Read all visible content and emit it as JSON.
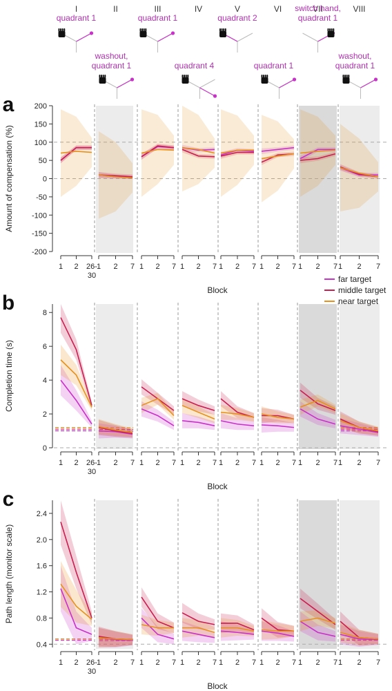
{
  "colors": {
    "far": "#c832c8",
    "middle": "#c81e50",
    "near": "#e6911e",
    "shade": "#e8e8e8",
    "refline": "#b0b0b0",
    "grey_dark": "#dadada",
    "grey_light": "#ececec"
  },
  "phases": [
    {
      "roman": "I",
      "label": "quadrant 1",
      "hand": "right",
      "quadrant": 1,
      "row": "top"
    },
    {
      "roman": "II",
      "label": "washout, quadrant 1",
      "hand": "right",
      "quadrant": 1,
      "row": "mid"
    },
    {
      "roman": "III",
      "label": "quadrant 1",
      "hand": "right",
      "quadrant": 1,
      "row": "top"
    },
    {
      "roman": "IV",
      "label": "quadrant 4",
      "hand": "right",
      "quadrant": 4,
      "row": "mid"
    },
    {
      "roman": "V",
      "label": "quadrant 2",
      "hand": "right",
      "quadrant": 2,
      "row": "top"
    },
    {
      "roman": "VI",
      "label": "quadrant 1",
      "hand": "right",
      "quadrant": 1,
      "row": "mid"
    },
    {
      "roman": "VII",
      "label": "switch hand, quadrant 1",
      "hand": "left",
      "quadrant": 1,
      "row": "top"
    },
    {
      "roman": "VIII",
      "label": "washout, quadrant 1",
      "hand": "right",
      "quadrant": 1,
      "row": "mid"
    }
  ],
  "legend": [
    "far target",
    "middle target",
    "near target"
  ],
  "chart_data": [
    {
      "type": "line",
      "panel": "a",
      "ylabel": "Amount of compensation (%)",
      "xlabel": "Block",
      "ylim": [
        -200,
        200
      ],
      "yticks": [
        -200,
        -150,
        -100,
        -50,
        0,
        50,
        100,
        150,
        200
      ],
      "ref_lines": [
        0,
        100
      ],
      "x_ticks": [
        "1",
        "2",
        "26-\n30"
      ],
      "series": [
        {
          "name": "far target",
          "values": [
            [
              50,
              85,
              85
            ],
            [
              10,
              5,
              5
            ],
            [
              60,
              88,
              85
            ],
            [
              85,
              78,
              80
            ],
            [
              65,
              78,
              75
            ],
            [
              75,
              80,
              85
            ],
            [
              55,
              80,
              80
            ],
            [
              30,
              10,
              10
            ]
          ]
        },
        {
          "name": "middle target",
          "values": [
            [
              50,
              85,
              85
            ],
            [
              10,
              8,
              5
            ],
            [
              60,
              90,
              85
            ],
            [
              80,
              62,
              60
            ],
            [
              62,
              72,
              72
            ],
            [
              45,
              65,
              68
            ],
            [
              50,
              55,
              68
            ],
            [
              32,
              12,
              5
            ]
          ]
        },
        {
          "name": "near target",
          "values": [
            [
              70,
              75,
              72
            ],
            [
              10,
              5,
              2
            ],
            [
              70,
              80,
              78
            ],
            [
              85,
              80,
              70
            ],
            [
              70,
              78,
              78
            ],
            [
              55,
              62,
              68
            ],
            [
              70,
              75,
              78
            ],
            [
              30,
              15,
              5
            ]
          ]
        }
      ]
    },
    {
      "type": "line",
      "panel": "b",
      "ylabel": "Completion time (s)",
      "xlabel": "Block",
      "ylim": [
        0,
        8.5
      ],
      "yticks": [
        0,
        2,
        4,
        6,
        8
      ],
      "x_ticks": [
        "1",
        "2",
        "26-\n30"
      ],
      "baselines": {
        "far target": 1.0,
        "middle target": 1.1,
        "near target": 1.2
      },
      "series": [
        {
          "name": "far target",
          "values": [
            [
              4.0,
              2.8,
              1.4
            ],
            [
              1.0,
              0.95,
              0.8
            ],
            [
              2.3,
              1.9,
              1.3
            ],
            [
              1.6,
              1.5,
              1.3
            ],
            [
              1.6,
              1.4,
              1.3
            ],
            [
              1.35,
              1.3,
              1.2
            ],
            [
              2.3,
              1.7,
              1.4
            ],
            [
              1.3,
              1.1,
              0.9
            ]
          ]
        },
        {
          "name": "middle target",
          "values": [
            [
              7.7,
              5.8,
              2.5
            ],
            [
              1.2,
              1.0,
              0.85
            ],
            [
              3.6,
              2.9,
              2.2
            ],
            [
              2.9,
              2.5,
              2.2
            ],
            [
              2.9,
              2.1,
              1.8
            ],
            [
              1.9,
              1.9,
              1.7
            ],
            [
              3.4,
              2.6,
              2.2
            ],
            [
              1.7,
              1.2,
              0.95
            ]
          ]
        },
        {
          "name": "near target",
          "values": [
            [
              5.2,
              4.3,
              2.4
            ],
            [
              1.25,
              1.05,
              0.9
            ],
            [
              2.5,
              2.9,
              1.9
            ],
            [
              2.5,
              2.1,
              1.7
            ],
            [
              2.1,
              2.0,
              1.8
            ],
            [
              2.0,
              1.8,
              1.7
            ],
            [
              2.4,
              2.8,
              2.3
            ],
            [
              1.6,
              1.2,
              1.0
            ]
          ]
        }
      ]
    },
    {
      "type": "line",
      "panel": "c",
      "ylabel": "Path length (monitor scale)",
      "xlabel": "Block",
      "ylim": [
        0.35,
        2.6
      ],
      "yticks": [
        0.4,
        0.8,
        1.2,
        1.6,
        2.0,
        2.4
      ],
      "ref_lines": [
        0.4
      ],
      "x_ticks": [
        "1",
        "2",
        "26-\n30"
      ],
      "baselines": {
        "far target": 0.46,
        "middle target": 0.48,
        "near target": 0.48
      },
      "series": [
        {
          "name": "far target",
          "values": [
            [
              1.25,
              0.65,
              0.55
            ],
            [
              0.5,
              0.47,
              0.46
            ],
            [
              0.8,
              0.55,
              0.48
            ],
            [
              0.6,
              0.55,
              0.5
            ],
            [
              0.6,
              0.58,
              0.55
            ],
            [
              0.6,
              0.57,
              0.52
            ],
            [
              0.75,
              0.58,
              0.52
            ],
            [
              0.55,
              0.48,
              0.47
            ]
          ]
        },
        {
          "name": "middle target",
          "values": [
            [
              2.27,
              1.5,
              0.8
            ],
            [
              0.52,
              0.48,
              0.47
            ],
            [
              1.12,
              0.75,
              0.65
            ],
            [
              0.88,
              0.75,
              0.7
            ],
            [
              0.72,
              0.72,
              0.62
            ],
            [
              0.8,
              0.62,
              0.6
            ],
            [
              1.1,
              0.9,
              0.7
            ],
            [
              0.75,
              0.5,
              0.48
            ]
          ]
        },
        {
          "name": "near target",
          "values": [
            [
              1.32,
              0.98,
              0.78
            ],
            [
              0.5,
              0.48,
              0.47
            ],
            [
              0.7,
              0.65,
              0.65
            ],
            [
              0.65,
              0.65,
              0.58
            ],
            [
              0.65,
              0.65,
              0.6
            ],
            [
              0.62,
              0.6,
              0.6
            ],
            [
              0.75,
              0.8,
              0.72
            ],
            [
              0.58,
              0.5,
              0.48
            ]
          ]
        }
      ]
    }
  ]
}
